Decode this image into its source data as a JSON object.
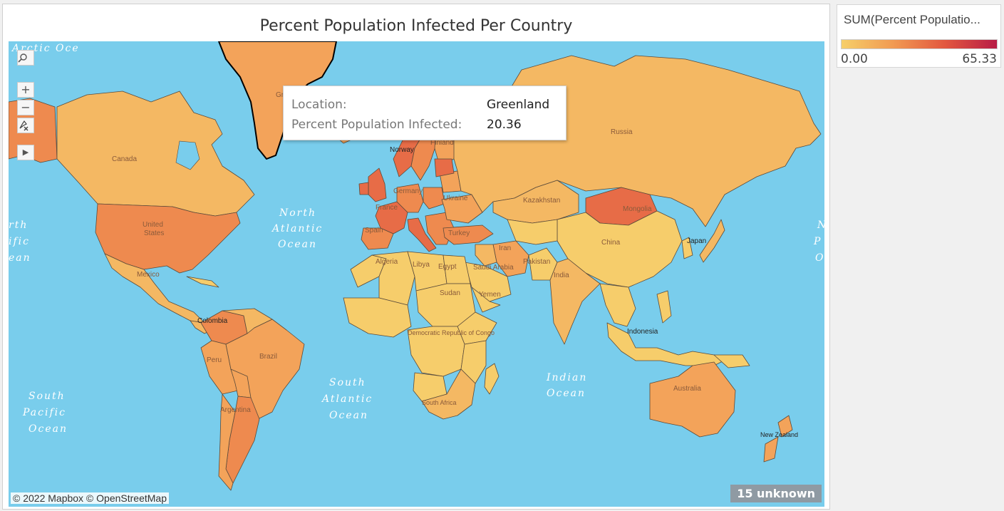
{
  "title": "Percent Population Infected Per Country",
  "tooltip": {
    "location_label": "Location:",
    "location_value": "Greenland",
    "metric_label": "Percent Population Infected:",
    "metric_value": "20.36"
  },
  "legend": {
    "title": "SUM(Percent Populatio...",
    "min": "0.00",
    "max": "65.33",
    "colors": [
      "#f6cf6a",
      "#f19a52",
      "#e2573f",
      "#b81d46"
    ]
  },
  "attribution": "© 2022 Mapbox © OpenStreetMap",
  "unknown_badge": "15 unknown",
  "toolbar": {
    "search_icon": "search-icon",
    "zoom_in": "+",
    "zoom_out": "−",
    "pin_icon": "pin-clear-icon",
    "expand": "▶"
  },
  "country_labels": {
    "canada": "Canada",
    "us": "United States",
    "mexico": "Mexico",
    "colombia": "Colombia",
    "peru": "Peru",
    "brazil": "Brazil",
    "argentina": "Argentina",
    "greenland": "Gr",
    "norway": "Norway",
    "finland": "Finland",
    "germany": "Germany",
    "france": "France",
    "spain": "Spain",
    "ukraine": "Ukraine",
    "turkey": "Turkey",
    "russia": "Russia",
    "kazakhstan": "Kazakhstan",
    "mongolia": "Mongolia",
    "china": "China",
    "japan": "Japan",
    "iran": "Iran",
    "pakistan": "Pakistan",
    "india": "India",
    "saudi": "Saudi Arabia",
    "algeria": "Algeria",
    "libya": "Libya",
    "egypt": "Egypt",
    "sudan": "Sudan",
    "drc": "Democratic Republic of Congo",
    "southafrica": "South Africa",
    "indonesia": "Indonesia",
    "australia": "Australia",
    "newzealand": "New Zealand",
    "yemen": "Yemen"
  },
  "ocean_labels": {
    "north_atlantic": [
      "North",
      "Atlantic",
      "Ocean"
    ],
    "south_atlantic": [
      "South",
      "Atlantic",
      "Ocean"
    ],
    "indian": [
      "Indian",
      "Ocean"
    ],
    "south_pacific": [
      "South",
      "Pacific",
      "Ocean"
    ],
    "north_pacific_left": [
      "rth",
      "ific",
      "ean"
    ],
    "north_pacific_right": [
      "N",
      "P",
      "O"
    ],
    "arctic": "Arctic Oce"
  },
  "fill_colors": {
    "low": "#f6cd6b",
    "lowmid": "#f4b863",
    "mid": "#f3a35a",
    "midhigh": "#ee8a4f",
    "high": "#e76c47",
    "top": "#d94e42"
  }
}
